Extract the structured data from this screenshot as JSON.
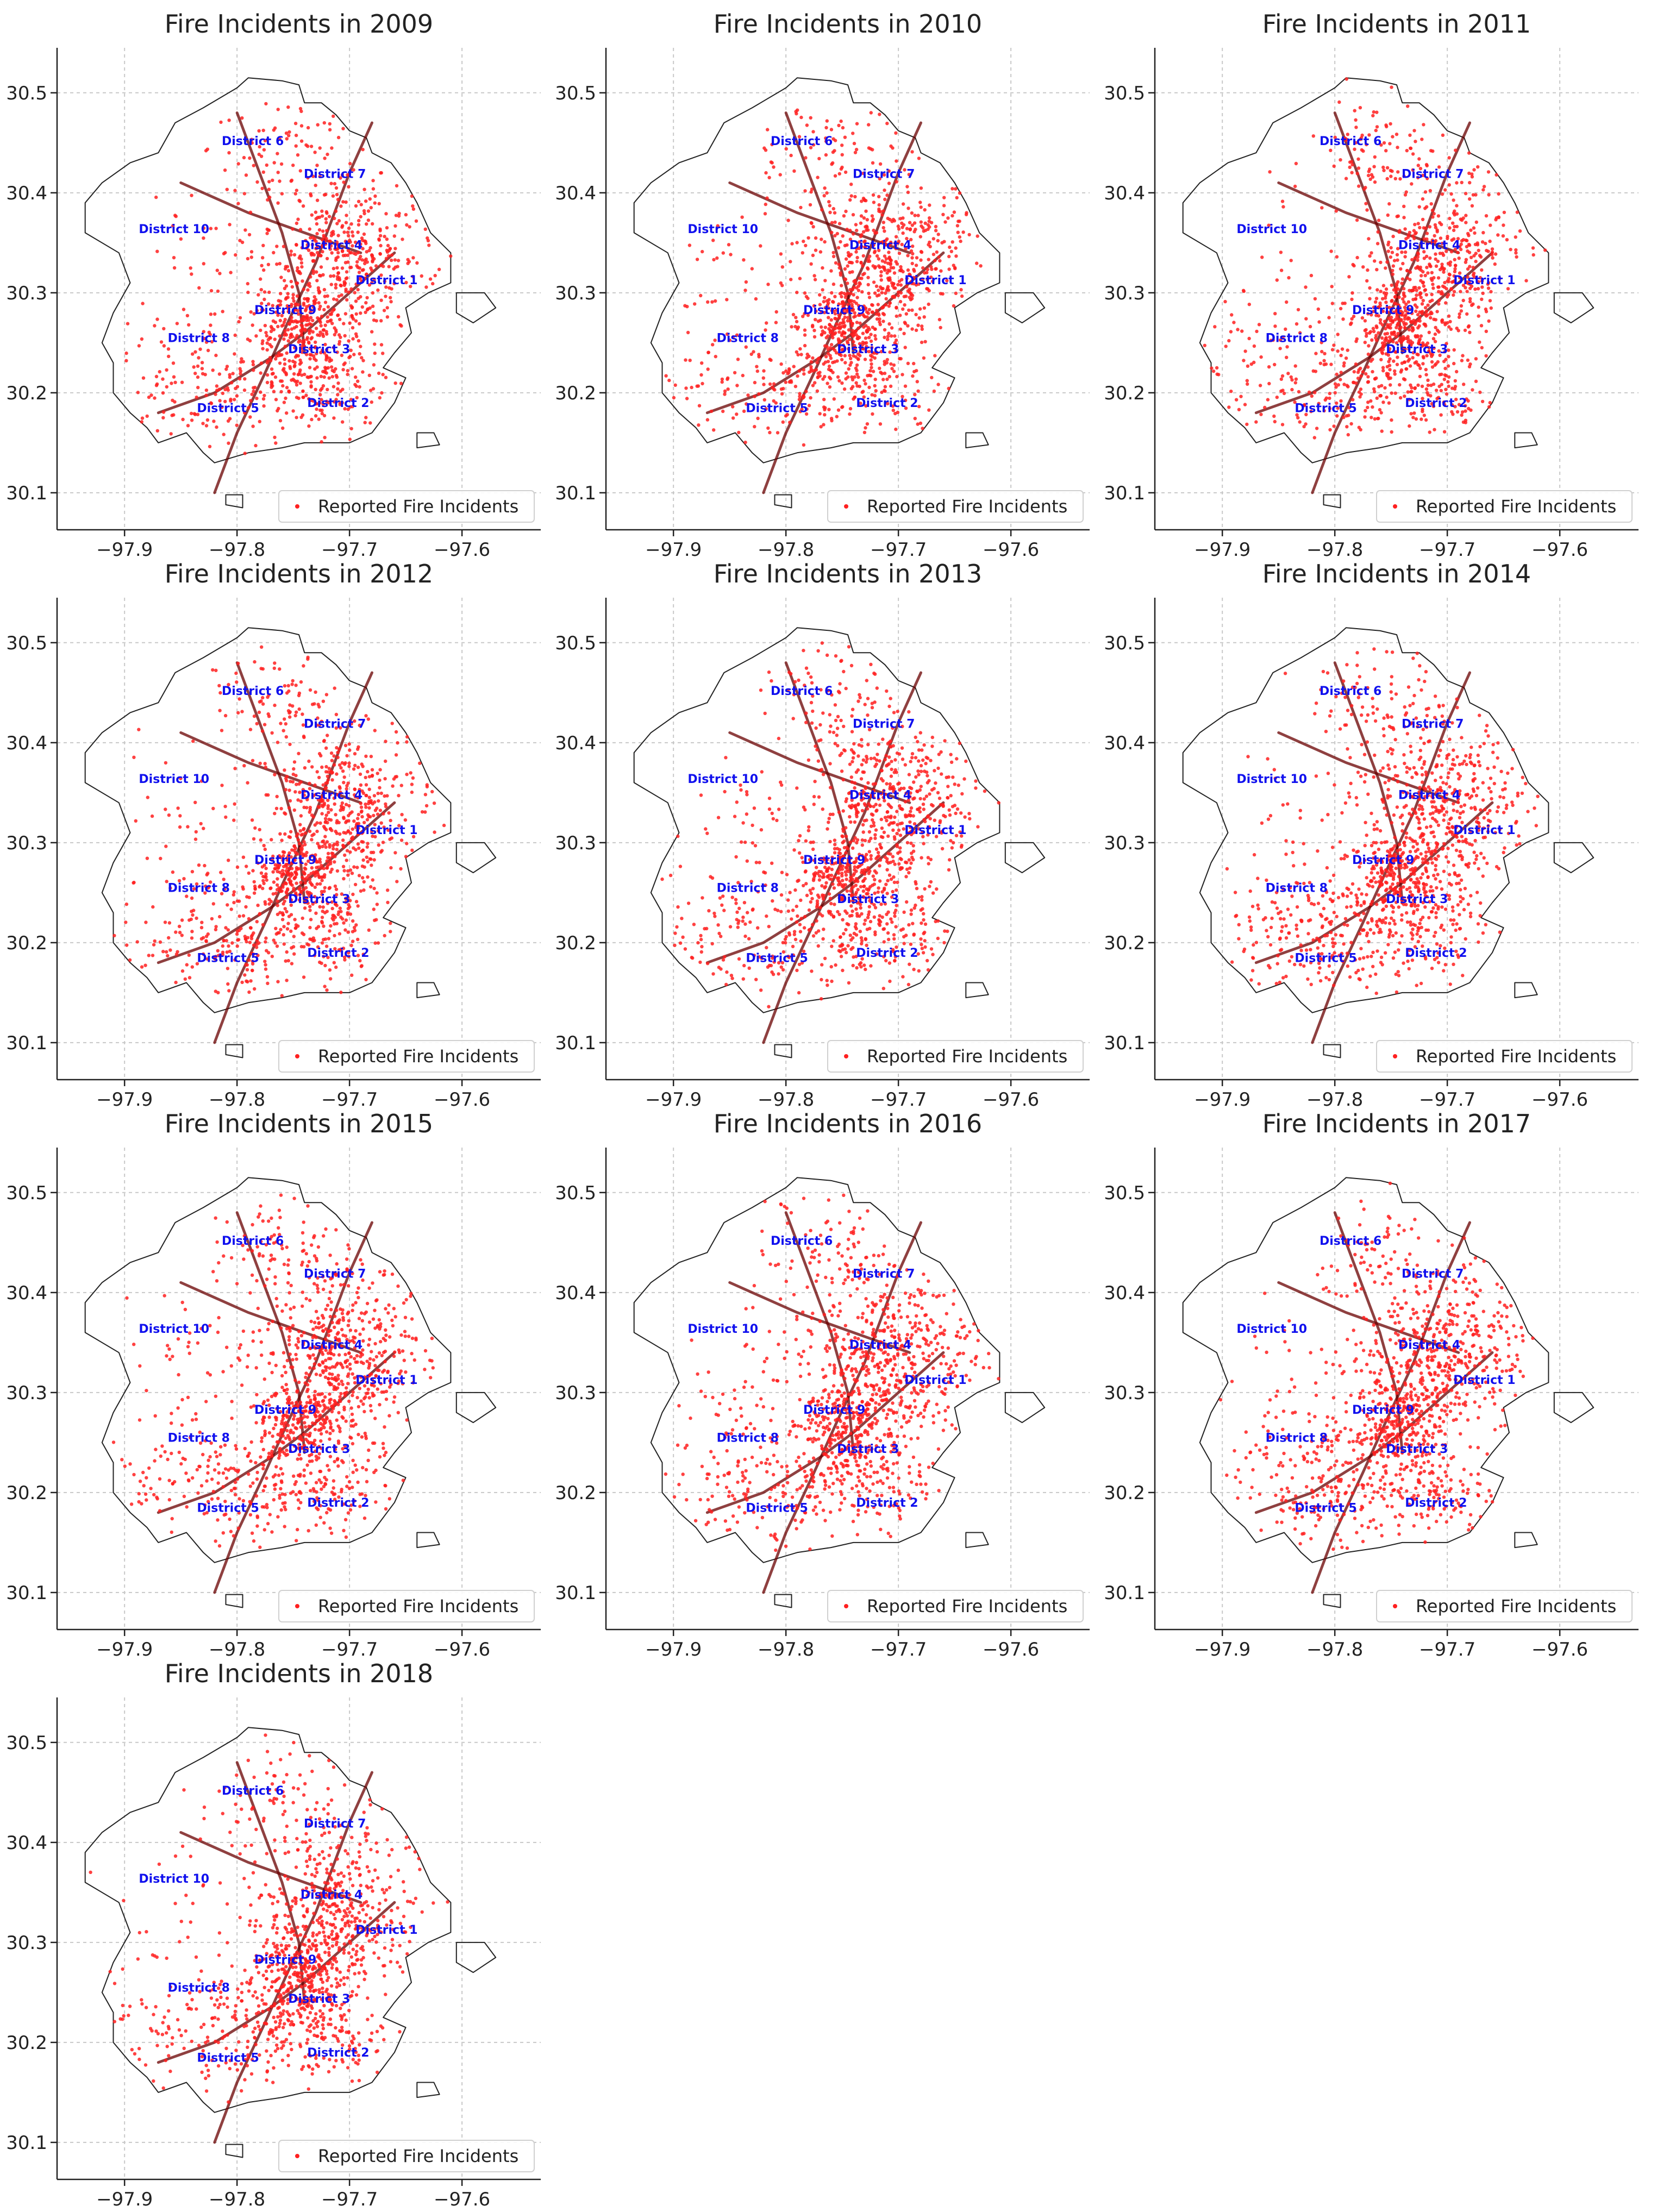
{
  "chart_data": {
    "type": "scatter",
    "layout": "small-multiples grid, 3 columns",
    "x_axis": {
      "xlim": [
        -97.96,
        -97.53
      ],
      "ticks": [
        -97.9,
        -97.8,
        -97.7,
        -97.6
      ],
      "tick_labels": [
        "−97.9",
        "−97.8",
        "−97.7",
        "−97.6"
      ]
    },
    "y_axis": {
      "ylim": [
        30.063,
        30.545
      ],
      "ticks": [
        30.1,
        30.2,
        30.3,
        30.4,
        30.5
      ],
      "tick_labels": [
        "30.1",
        "30.2",
        "30.3",
        "30.4",
        "30.5"
      ]
    },
    "grid": true,
    "legend": {
      "label": "Reported Fire Incidents",
      "location": "lower right",
      "marker_color": "#ff2020"
    },
    "series_color": "#ff2020",
    "districts": [
      {
        "label": "District 1",
        "lon": -97.667,
        "lat": 30.312
      },
      {
        "label": "District 2",
        "lon": -97.71,
        "lat": 30.189
      },
      {
        "label": "District 3",
        "lon": -97.727,
        "lat": 30.243
      },
      {
        "label": "District 4",
        "lon": -97.716,
        "lat": 30.347
      },
      {
        "label": "District 5",
        "lon": -97.808,
        "lat": 30.184
      },
      {
        "label": "District 6",
        "lon": -97.786,
        "lat": 30.451
      },
      {
        "label": "District 7",
        "lon": -97.713,
        "lat": 30.418
      },
      {
        "label": "District 8",
        "lon": -97.834,
        "lat": 30.254
      },
      {
        "label": "District 9",
        "lon": -97.757,
        "lat": 30.282
      },
      {
        "label": "District 10",
        "lon": -97.856,
        "lat": 30.363
      }
    ],
    "boundary_outline": [
      [
        -97.8,
        30.505
      ],
      [
        -97.79,
        30.515
      ],
      [
        -97.76,
        30.512
      ],
      [
        -97.745,
        30.508
      ],
      [
        -97.74,
        30.49
      ],
      [
        -97.725,
        30.49
      ],
      [
        -97.712,
        30.478
      ],
      [
        -97.7,
        30.462
      ],
      [
        -97.685,
        30.455
      ],
      [
        -97.68,
        30.44
      ],
      [
        -97.663,
        30.43
      ],
      [
        -97.65,
        30.41
      ],
      [
        -97.64,
        30.39
      ],
      [
        -97.628,
        30.36
      ],
      [
        -97.61,
        30.34
      ],
      [
        -97.61,
        30.31
      ],
      [
        -97.63,
        30.3
      ],
      [
        -97.65,
        30.285
      ],
      [
        -97.645,
        30.26
      ],
      [
        -97.66,
        30.24
      ],
      [
        -97.67,
        30.225
      ],
      [
        -97.65,
        30.215
      ],
      [
        -97.66,
        30.19
      ],
      [
        -97.68,
        30.16
      ],
      [
        -97.7,
        30.15
      ],
      [
        -97.74,
        30.15
      ],
      [
        -97.76,
        30.145
      ],
      [
        -97.79,
        30.14
      ],
      [
        -97.82,
        30.13
      ],
      [
        -97.83,
        30.14
      ],
      [
        -97.845,
        30.16
      ],
      [
        -97.87,
        30.15
      ],
      [
        -97.88,
        30.165
      ],
      [
        -97.895,
        30.18
      ],
      [
        -97.91,
        30.2
      ],
      [
        -97.91,
        30.23
      ],
      [
        -97.92,
        30.25
      ],
      [
        -97.91,
        30.28
      ],
      [
        -97.895,
        30.31
      ],
      [
        -97.905,
        30.34
      ],
      [
        -97.935,
        30.36
      ],
      [
        -97.935,
        30.39
      ],
      [
        -97.92,
        30.41
      ],
      [
        -97.895,
        30.43
      ],
      [
        -97.87,
        30.44
      ],
      [
        -97.855,
        30.47
      ],
      [
        -97.83,
        30.485
      ],
      [
        -97.8,
        30.505
      ]
    ],
    "series": [
      {
        "name": "Fire Incidents in 2009",
        "year": 2009,
        "title": "Fire Incidents in 2009"
      },
      {
        "name": "Fire Incidents in 2010",
        "year": 2010,
        "title": "Fire Incidents in 2010"
      },
      {
        "name": "Fire Incidents in 2011",
        "year": 2011,
        "title": "Fire Incidents in 2011"
      },
      {
        "name": "Fire Incidents in 2012",
        "year": 2012,
        "title": "Fire Incidents in 2012"
      },
      {
        "name": "Fire Incidents in 2013",
        "year": 2013,
        "title": "Fire Incidents in 2013"
      },
      {
        "name": "Fire Incidents in 2014",
        "year": 2014,
        "title": "Fire Incidents in 2014"
      },
      {
        "name": "Fire Incidents in 2015",
        "year": 2015,
        "title": "Fire Incidents in 2015"
      },
      {
        "name": "Fire Incidents in 2016",
        "year": 2016,
        "title": "Fire Incidents in 2016"
      },
      {
        "name": "Fire Incidents in 2017",
        "year": 2017,
        "title": "Fire Incidents in 2017"
      },
      {
        "name": "Fire Incidents in 2018",
        "year": 2018,
        "title": "Fire Incidents in 2018"
      }
    ]
  }
}
